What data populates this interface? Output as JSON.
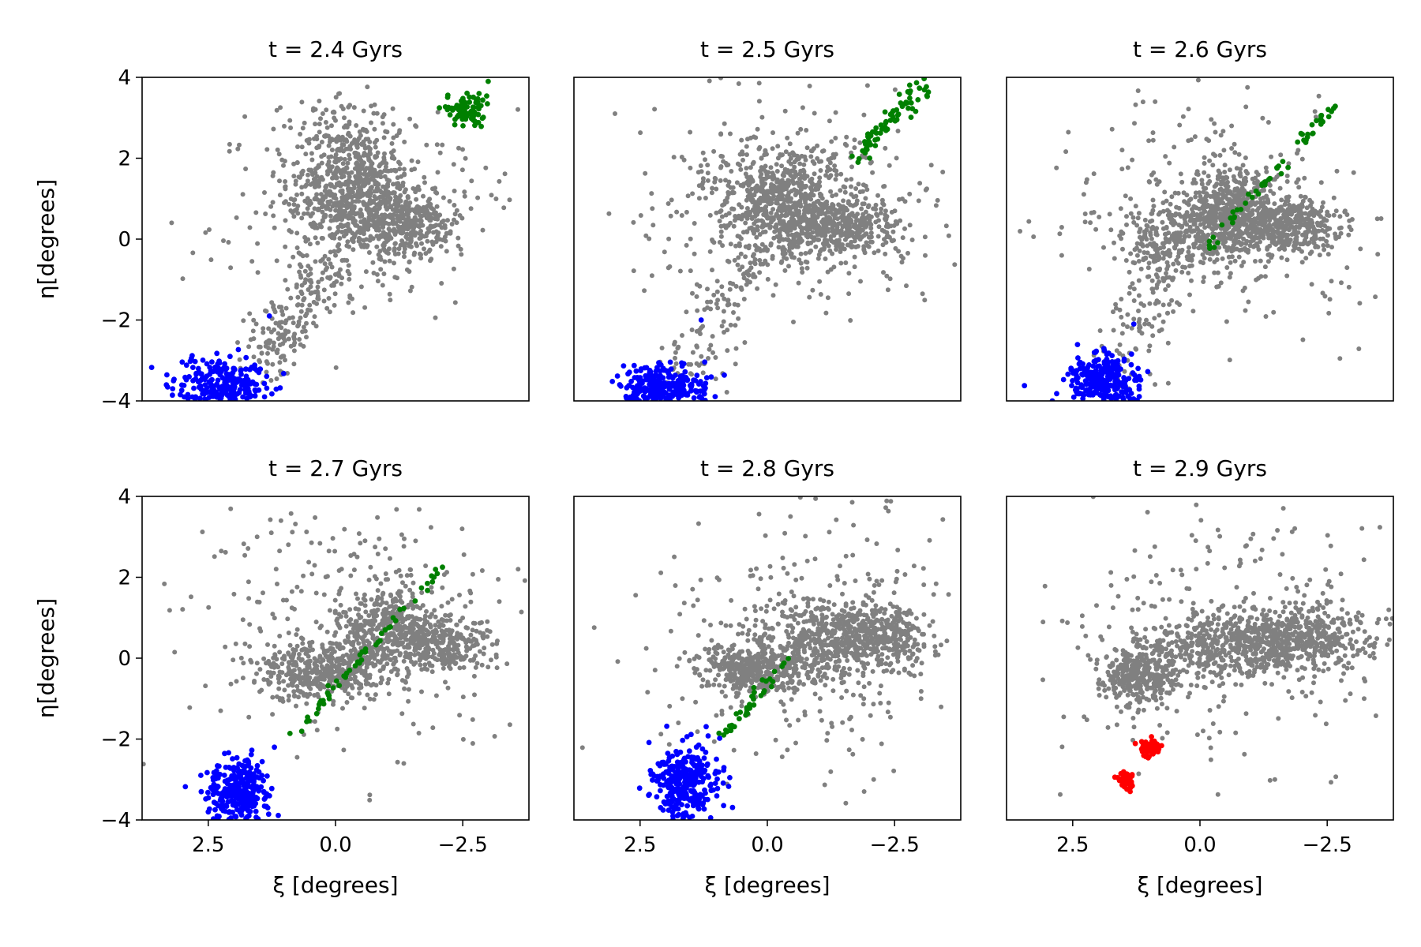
{
  "figure": {
    "x_axis_label": "ξ [degrees]",
    "y_axis_label": "η[degrees]",
    "colors": {
      "background": "#gray",
      "gray": "#808080",
      "blue": "#0000ff",
      "green": "#008000",
      "red": "#ff0000",
      "axes": "#000000"
    }
  },
  "chart_data": [
    {
      "type": "scatter",
      "title": "t = 2.4 Gyrs",
      "xlabel": "",
      "ylabel": "η[degrees]",
      "xlim": [
        3.8,
        -3.8
      ],
      "ylim": [
        -4,
        4
      ],
      "xticks": [],
      "yticks": [
        4,
        2,
        0,
        -2,
        -4
      ],
      "ytick_labels": [
        "4",
        "2",
        "0",
        "−2",
        "−4"
      ],
      "series": [
        {
          "name": "gray cloud",
          "color": "#808080",
          "clusters": [
            {
              "cx": -0.3,
              "cy": 1.3,
              "sx": 0.6,
              "sy": 0.9,
              "n": 700
            },
            {
              "cx": -1.3,
              "cy": 0.4,
              "sx": 0.5,
              "sy": 0.4,
              "n": 350
            },
            {
              "cx": -0.4,
              "cy": 1.0,
              "sx": 1.4,
              "sy": 1.3,
              "n": 250
            },
            {
              "cx": 1.3,
              "cy": -2.6,
              "sx": 0.3,
              "sy": 0.5,
              "n": 60
            }
          ]
        },
        {
          "name": "bridge",
          "color": "#808080",
          "line": {
            "x0": 1.4,
            "y0": -3.0,
            "x1": 0.1,
            "y1": -0.5,
            "n": 120,
            "spread": 0.3
          }
        },
        {
          "name": "blue clump",
          "color": "#0000ff",
          "clusters": [
            {
              "cx": 2.2,
              "cy": -3.6,
              "sx": 0.45,
              "sy": 0.3,
              "n": 250
            }
          ]
        },
        {
          "name": "blue outliers",
          "color": "#0000ff",
          "points": [
            [
              3.2,
              -3.7
            ],
            [
              1.3,
              -1.9
            ],
            [
              2.8,
              -3.5
            ]
          ]
        },
        {
          "name": "green clump",
          "color": "#008000",
          "clusters": [
            {
              "cx": -2.6,
              "cy": 3.2,
              "sx": 0.2,
              "sy": 0.2,
              "n": 80
            }
          ]
        },
        {
          "name": "green outliers",
          "color": "#008000",
          "points": [
            [
              -3.0,
              3.9
            ],
            [
              -2.2,
              3.2
            ]
          ]
        }
      ]
    },
    {
      "type": "scatter",
      "title": "t = 2.5 Gyrs",
      "xlabel": "",
      "ylabel": "",
      "xlim": [
        3.8,
        -3.8
      ],
      "ylim": [
        -4,
        4
      ],
      "xticks": [],
      "yticks": [],
      "series": [
        {
          "name": "gray cloud",
          "color": "#808080",
          "clusters": [
            {
              "cx": -0.3,
              "cy": 0.9,
              "sx": 0.6,
              "sy": 0.7,
              "n": 650
            },
            {
              "cx": -1.5,
              "cy": 0.3,
              "sx": 0.6,
              "sy": 0.35,
              "n": 350
            },
            {
              "cx": -0.4,
              "cy": 0.8,
              "sx": 1.5,
              "sy": 1.4,
              "n": 300
            }
          ]
        },
        {
          "name": "bridge",
          "color": "#808080",
          "line": {
            "x0": 1.6,
            "y0": -3.4,
            "x1": 0.3,
            "y1": -0.5,
            "n": 110,
            "spread": 0.35
          }
        },
        {
          "name": "blue clump",
          "color": "#0000ff",
          "clusters": [
            {
              "cx": 2.0,
              "cy": -3.7,
              "sx": 0.4,
              "sy": 0.3,
              "n": 270
            }
          ]
        },
        {
          "name": "blue outliers",
          "color": "#0000ff",
          "points": [
            [
              1.3,
              -2.0
            ],
            [
              2.9,
              -3.6
            ]
          ]
        },
        {
          "name": "green stream",
          "color": "#008000",
          "line": {
            "x0": -1.7,
            "y0": 2.0,
            "x1": -3.1,
            "y1": 3.8,
            "n": 70,
            "spread": 0.12
          }
        }
      ]
    },
    {
      "type": "scatter",
      "title": "t = 2.6 Gyrs",
      "xlabel": "",
      "ylabel": "",
      "xlim": [
        3.8,
        -3.8
      ],
      "ylim": [
        -4,
        4
      ],
      "xticks": [],
      "yticks": [],
      "series": [
        {
          "name": "gray cloud",
          "color": "#808080",
          "clusters": [
            {
              "cx": -0.6,
              "cy": 0.6,
              "sx": 0.5,
              "sy": 0.55,
              "n": 600
            },
            {
              "cx": -1.8,
              "cy": 0.3,
              "sx": 0.5,
              "sy": 0.35,
              "n": 350
            },
            {
              "cx": 0.6,
              "cy": 0.0,
              "sx": 0.5,
              "sy": 0.4,
              "n": 200
            },
            {
              "cx": -0.4,
              "cy": 0.6,
              "sx": 1.6,
              "sy": 1.5,
              "n": 300
            }
          ]
        },
        {
          "name": "bridge",
          "color": "#808080",
          "line": {
            "x0": 1.6,
            "y0": -3.2,
            "x1": 0.5,
            "y1": -0.8,
            "n": 90,
            "spread": 0.35
          }
        },
        {
          "name": "blue clump",
          "color": "#0000ff",
          "clusters": [
            {
              "cx": 1.9,
              "cy": -3.5,
              "sx": 0.35,
              "sy": 0.35,
              "n": 280
            }
          ]
        },
        {
          "name": "blue outliers",
          "color": "#0000ff",
          "points": [
            [
              1.3,
              -2.1
            ],
            [
              2.9,
              -4.0
            ]
          ]
        },
        {
          "name": "green stream",
          "color": "#008000",
          "line": {
            "x0": -0.1,
            "y0": -0.3,
            "x1": -2.7,
            "y1": 3.4,
            "n": 55,
            "spread": 0.06
          }
        }
      ]
    },
    {
      "type": "scatter",
      "title": "t = 2.7 Gyrs",
      "xlabel": "ξ [degrees]",
      "ylabel": "η[degrees]",
      "xlim": [
        3.8,
        -3.8
      ],
      "ylim": [
        -4,
        4
      ],
      "xticks": [
        2.5,
        0.0,
        -2.5
      ],
      "xtick_labels": [
        "2.5",
        "0.0",
        "−2.5"
      ],
      "yticks": [
        4,
        2,
        0,
        -2,
        -4
      ],
      "ytick_labels": [
        "4",
        "2",
        "0",
        "−2",
        "−4"
      ],
      "series": [
        {
          "name": "gray cloud",
          "color": "#808080",
          "clusters": [
            {
              "cx": 0.2,
              "cy": -0.3,
              "sx": 0.6,
              "sy": 0.35,
              "n": 450
            },
            {
              "cx": -1.0,
              "cy": 0.8,
              "sx": 0.5,
              "sy": 0.5,
              "n": 350
            },
            {
              "cx": -2.0,
              "cy": 0.4,
              "sx": 0.45,
              "sy": 0.35,
              "n": 300
            },
            {
              "cx": -0.6,
              "cy": 0.8,
              "sx": 1.6,
              "sy": 1.6,
              "n": 300
            }
          ]
        },
        {
          "name": "blue clump",
          "color": "#0000ff",
          "clusters": [
            {
              "cx": 1.9,
              "cy": -3.3,
              "sx": 0.3,
              "sy": 0.4,
              "n": 320
            }
          ]
        },
        {
          "name": "blue outliers",
          "color": "#0000ff",
          "points": [
            [
              1.2,
              -2.2
            ],
            [
              2.5,
              -3.8
            ]
          ]
        },
        {
          "name": "green stream",
          "color": "#008000",
          "line": {
            "x0": 0.9,
            "y0": -2.0,
            "x1": -2.1,
            "y1": 2.3,
            "n": 55,
            "spread": 0.05
          }
        }
      ]
    },
    {
      "type": "scatter",
      "title": "t = 2.8 Gyrs",
      "xlabel": "ξ [degrees]",
      "ylabel": "",
      "xlim": [
        3.8,
        -3.8
      ],
      "ylim": [
        -4,
        4
      ],
      "xticks": [
        2.5,
        0.0,
        -2.5
      ],
      "xtick_labels": [
        "2.5",
        "0.0",
        "−2.5"
      ],
      "yticks": [],
      "series": [
        {
          "name": "gray cloud",
          "color": "#808080",
          "clusters": [
            {
              "cx": 0.3,
              "cy": -0.3,
              "sx": 0.5,
              "sy": 0.3,
              "n": 380
            },
            {
              "cx": -1.0,
              "cy": 0.4,
              "sx": 0.6,
              "sy": 0.5,
              "n": 350
            },
            {
              "cx": -2.2,
              "cy": 0.5,
              "sx": 0.5,
              "sy": 0.4,
              "n": 350
            },
            {
              "cx": -0.8,
              "cy": 0.6,
              "sx": 1.6,
              "sy": 1.6,
              "n": 300
            }
          ]
        },
        {
          "name": "blue clump",
          "color": "#0000ff",
          "clusters": [
            {
              "cx": 1.6,
              "cy": -3.1,
              "sx": 0.3,
              "sy": 0.45,
              "n": 300
            }
          ]
        },
        {
          "name": "green stream",
          "color": "#008000",
          "line": {
            "x0": 0.9,
            "y0": -2.0,
            "x1": -0.4,
            "y1": 0.0,
            "n": 40,
            "spread": 0.06
          }
        }
      ]
    },
    {
      "type": "scatter",
      "title": "t = 2.9 Gyrs",
      "xlabel": "ξ [degrees]",
      "ylabel": "",
      "xlim": [
        3.8,
        -3.8
      ],
      "ylim": [
        -4,
        4
      ],
      "xticks": [
        2.5,
        0.0,
        -2.5
      ],
      "xtick_labels": [
        "2.5",
        "0.0",
        "−2.5"
      ],
      "yticks": [],
      "series": [
        {
          "name": "gray cloud",
          "color": "#808080",
          "clusters": [
            {
              "cx": 1.2,
              "cy": -0.4,
              "sx": 0.4,
              "sy": 0.35,
              "n": 350
            },
            {
              "cx": -0.6,
              "cy": 0.3,
              "sx": 0.8,
              "sy": 0.4,
              "n": 450
            },
            {
              "cx": -2.2,
              "cy": 0.5,
              "sx": 0.6,
              "sy": 0.4,
              "n": 350
            },
            {
              "cx": -0.6,
              "cy": 0.5,
              "sx": 1.7,
              "sy": 1.6,
              "n": 300
            }
          ]
        },
        {
          "name": "red clump upper",
          "color": "#ff0000",
          "clusters": [
            {
              "cx": 1.0,
              "cy": -2.2,
              "sx": 0.1,
              "sy": 0.1,
              "n": 80
            }
          ]
        },
        {
          "name": "red clump lower",
          "color": "#ff0000",
          "clusters": [
            {
              "cx": 1.45,
              "cy": -3.0,
              "sx": 0.08,
              "sy": 0.1,
              "n": 60
            }
          ]
        }
      ]
    }
  ]
}
